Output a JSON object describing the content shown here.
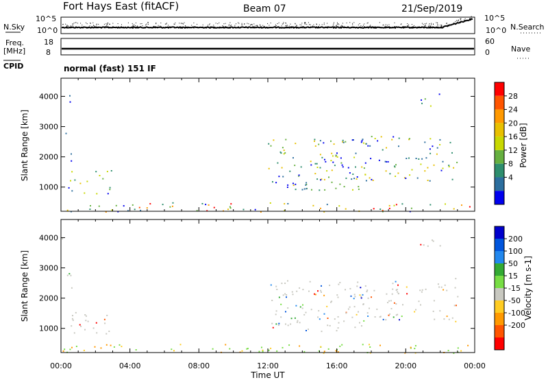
{
  "header": {
    "title": "Fort Hays East (fitACF)",
    "beam": "Beam 07",
    "date": "21/Sep/2019"
  },
  "strips": {
    "nsky_label": "N.Sky",
    "nsky_ticks": [
      "10^5",
      "10^0"
    ],
    "nsearch_label": "N.Search",
    "nsearch_ticks": [
      "10^5",
      "10^0"
    ],
    "freq_label_1": "Freq.",
    "freq_label_2": "[MHz]",
    "freq_ticks": [
      "18",
      "8"
    ],
    "nave_label": "Nave",
    "nave_ticks": [
      "60",
      "0"
    ],
    "cpid_label": "CPID",
    "cpid_value": "normal (fast) 151 IF"
  },
  "chart_data": [
    {
      "type": "heatmap",
      "name": "power-panel",
      "xlabel": "",
      "ylabel": "Slant Range [km]",
      "yticks": [
        "4000",
        "3000",
        "2000",
        "1000"
      ],
      "ylim": [
        200,
        4600
      ],
      "colorbar": {
        "label": "Power [dB]",
        "ticks": [
          "28",
          "24",
          "20",
          "16",
          "12",
          "8",
          "4"
        ],
        "colors": [
          "#ff0000",
          "#ff5500",
          "#ff9900",
          "#e8c000",
          "#c8d800",
          "#66b040",
          "#2e8e6e",
          "#2c6e9e",
          "#0000ee"
        ]
      },
      "echo_regions": [
        {
          "t_start": 0.1,
          "t_end": 0.6,
          "r_start": 1800,
          "r_end": 2900
        },
        {
          "t_start": 0.4,
          "t_end": 3.0,
          "r_start": 800,
          "r_end": 1600
        },
        {
          "t_start": 0.0,
          "t_end": 23.8,
          "r_start": 200,
          "r_end": 500
        },
        {
          "t_start": 12.0,
          "t_end": 18.0,
          "r_start": 900,
          "r_end": 2600
        },
        {
          "t_start": 15.0,
          "t_end": 23.0,
          "r_start": 1200,
          "r_end": 2200
        },
        {
          "t_start": 17.0,
          "t_end": 23.0,
          "r_start": 2200,
          "r_end": 2700
        },
        {
          "t_start": 20.5,
          "t_end": 22.0,
          "r_start": 3700,
          "r_end": 4100
        },
        {
          "t_start": 0.0,
          "t_end": 0.5,
          "r_start": 3700,
          "r_end": 4100
        }
      ]
    },
    {
      "type": "heatmap",
      "name": "velocity-panel",
      "xlabel": "Time UT",
      "ylabel": "Slant Range [km]",
      "yticks": [
        "4000",
        "3000",
        "2000",
        "1000"
      ],
      "ylim": [
        200,
        4600
      ],
      "xticks": [
        "00:00",
        "04:00",
        "08:00",
        "12:00",
        "16:00",
        "20:00",
        "00:00"
      ],
      "xlim": [
        0,
        24
      ],
      "colorbar": {
        "label": "Velocity [m s-1]",
        "ticks": [
          "200",
          "100",
          "50",
          "15",
          "-15",
          "-50",
          "-100",
          "-200"
        ],
        "colors": [
          "#0000cc",
          "#0055dd",
          "#2288ee",
          "#33aa33",
          "#77dd44",
          "#c8c8c0",
          "#ffcc22",
          "#ff9900",
          "#ff5500",
          "#ff0000"
        ]
      },
      "echo_regions": [
        {
          "t_start": 0.1,
          "t_end": 0.6,
          "r_start": 1800,
          "r_end": 2900
        },
        {
          "t_start": 0.4,
          "t_end": 3.0,
          "r_start": 800,
          "r_end": 1600
        },
        {
          "t_start": 0.0,
          "t_end": 23.8,
          "r_start": 200,
          "r_end": 500
        },
        {
          "t_start": 12.0,
          "t_end": 18.0,
          "r_start": 900,
          "r_end": 2600
        },
        {
          "t_start": 15.0,
          "t_end": 23.0,
          "r_start": 1200,
          "r_end": 2200
        },
        {
          "t_start": 17.0,
          "t_end": 23.0,
          "r_start": 2200,
          "r_end": 2700
        },
        {
          "t_start": 20.5,
          "t_end": 22.0,
          "r_start": 3700,
          "r_end": 4100
        },
        {
          "t_start": 0.0,
          "t_end": 0.5,
          "r_start": 3700,
          "r_end": 4100
        }
      ]
    }
  ]
}
